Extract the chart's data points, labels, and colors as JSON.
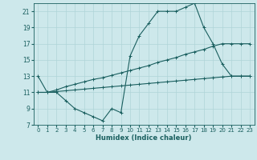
{
  "xlabel": "Humidex (Indice chaleur)",
  "bg_color": "#cde8eb",
  "grid_color": "#b0d4d8",
  "line_color": "#1a5f5f",
  "xlim": [
    -0.5,
    23.5
  ],
  "ylim": [
    7,
    22
  ],
  "xticks": [
    0,
    1,
    2,
    3,
    4,
    5,
    6,
    7,
    8,
    9,
    10,
    11,
    12,
    13,
    14,
    15,
    16,
    17,
    18,
    19,
    20,
    21,
    22,
    23
  ],
  "yticks": [
    7,
    9,
    11,
    13,
    15,
    17,
    19,
    21
  ],
  "line1_x": [
    0,
    1,
    2,
    3,
    4,
    5,
    6,
    7,
    8,
    9,
    10,
    11,
    12,
    13,
    14,
    15,
    16,
    17,
    18,
    19,
    20,
    21,
    22,
    23
  ],
  "line1_y": [
    13,
    11,
    11,
    10,
    9,
    8.5,
    8,
    7.5,
    9,
    8.5,
    15.5,
    18,
    19.5,
    21,
    21,
    21,
    21.5,
    22,
    19,
    17,
    14.5,
    13,
    13,
    13
  ],
  "line2_x": [
    0,
    1,
    2,
    3,
    4,
    5,
    6,
    7,
    8,
    9,
    10,
    11,
    12,
    13,
    14,
    15,
    16,
    17,
    18,
    19,
    20,
    21,
    22,
    23
  ],
  "line2_y": [
    11,
    11,
    11.3,
    11.7,
    12.0,
    12.3,
    12.6,
    12.8,
    13.1,
    13.4,
    13.7,
    14.0,
    14.3,
    14.7,
    15.0,
    15.3,
    15.7,
    16.0,
    16.3,
    16.7,
    17.0,
    17.0,
    17.0,
    17.0
  ],
  "line3_x": [
    0,
    1,
    2,
    3,
    4,
    5,
    6,
    7,
    8,
    9,
    10,
    11,
    12,
    13,
    14,
    15,
    16,
    17,
    18,
    19,
    20,
    21,
    22,
    23
  ],
  "line3_y": [
    11,
    11,
    11.1,
    11.2,
    11.3,
    11.4,
    11.5,
    11.6,
    11.7,
    11.8,
    11.9,
    12.0,
    12.1,
    12.2,
    12.3,
    12.4,
    12.5,
    12.6,
    12.7,
    12.8,
    12.9,
    13.0,
    13.0,
    13.0
  ]
}
